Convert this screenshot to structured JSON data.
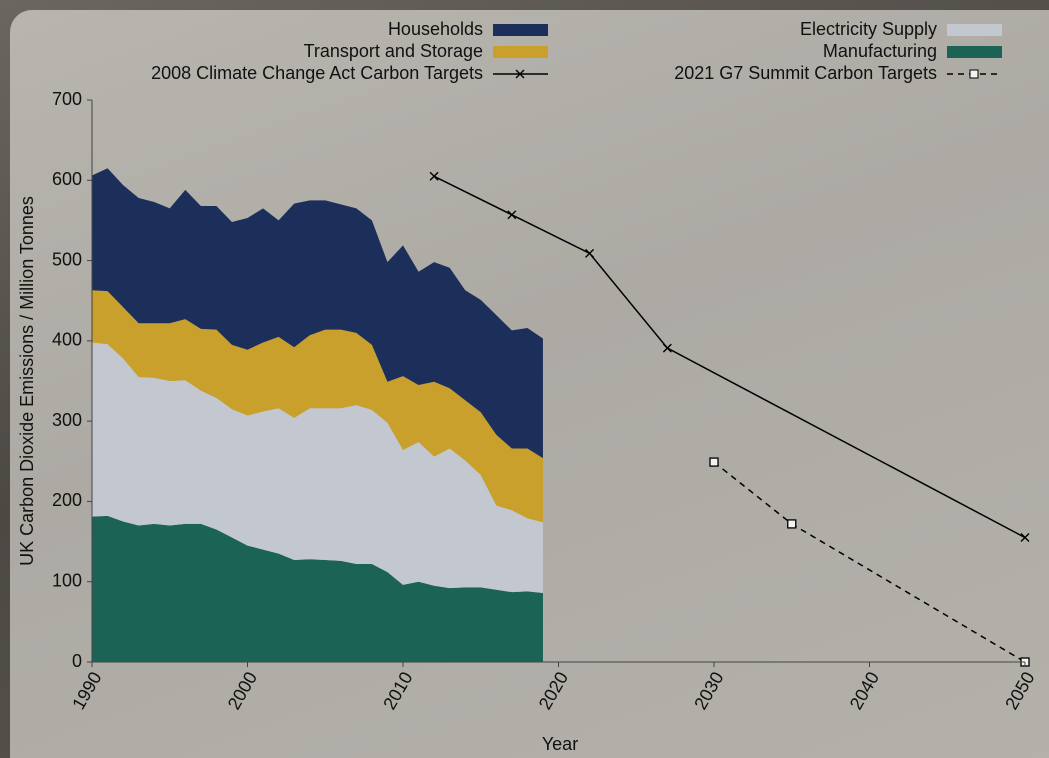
{
  "chart_data": {
    "type": "area",
    "stacked": true,
    "x_label": "Year",
    "y_label": "UK Carbon Dioxide Emissions / Million Tonnes",
    "x": [
      1990,
      1991,
      1992,
      1993,
      1994,
      1995,
      1996,
      1997,
      1998,
      1999,
      2000,
      2001,
      2002,
      2003,
      2004,
      2005,
      2006,
      2007,
      2008,
      2009,
      2010,
      2011,
      2012,
      2013,
      2014,
      2015,
      2016,
      2017,
      2018,
      2019
    ],
    "series": [
      {
        "name": "Households",
        "type": "area",
        "color": "#1c2e5a",
        "values": [
          143,
          153,
          152,
          156,
          151,
          143,
          161,
          153,
          154,
          153,
          164,
          167,
          145,
          179,
          168,
          161,
          156,
          155,
          155,
          149,
          163,
          141,
          149,
          150,
          137,
          140,
          149,
          147,
          150,
          149
        ]
      },
      {
        "name": "Transport and Storage",
        "type": "area",
        "color": "#c9a02c",
        "values": [
          65,
          66,
          64,
          67,
          68,
          72,
          76,
          77,
          85,
          80,
          82,
          86,
          89,
          88,
          91,
          98,
          98,
          90,
          81,
          51,
          92,
          71,
          93,
          75,
          75,
          78,
          88,
          77,
          87,
          80
        ]
      },
      {
        "name": "Electricity Supply",
        "type": "area",
        "color": "#c3c7d0",
        "values": [
          217,
          214,
          203,
          185,
          182,
          180,
          179,
          166,
          164,
          160,
          162,
          172,
          181,
          177,
          188,
          189,
          190,
          198,
          192,
          186,
          168,
          174,
          161,
          174,
          158,
          140,
          105,
          102,
          91,
          88
        ]
      },
      {
        "name": "Manufacturing",
        "type": "area",
        "color": "#1a6355",
        "values": [
          181,
          182,
          175,
          170,
          172,
          170,
          172,
          172,
          165,
          155,
          145,
          140,
          135,
          127,
          128,
          127,
          126,
          122,
          122,
          112,
          96,
          100,
          95,
          92,
          93,
          93,
          90,
          87,
          88,
          86
        ]
      },
      {
        "name": "2008 Climate Change Act Carbon Targets",
        "type": "line",
        "color": "#000000",
        "dashed": false,
        "marker": "x",
        "x": [
          2012,
          2017,
          2022,
          2027,
          2050
        ],
        "values": [
          605,
          557,
          509,
          391,
          155
        ]
      },
      {
        "name": "2021 G7 Summit Carbon Targets",
        "type": "line",
        "color": "#000000",
        "dashed": true,
        "marker": "square",
        "x": [
          2030,
          2035,
          2050
        ],
        "values": [
          249,
          172,
          0
        ]
      }
    ],
    "xlim": [
      1990,
      2050
    ],
    "xticks": [
      1990,
      2000,
      2010,
      2020,
      2030,
      2040,
      2050
    ],
    "ylim": [
      0,
      700
    ],
    "yticks": [
      0,
      100,
      200,
      300,
      400,
      500,
      600,
      700
    ],
    "grid": false
  }
}
